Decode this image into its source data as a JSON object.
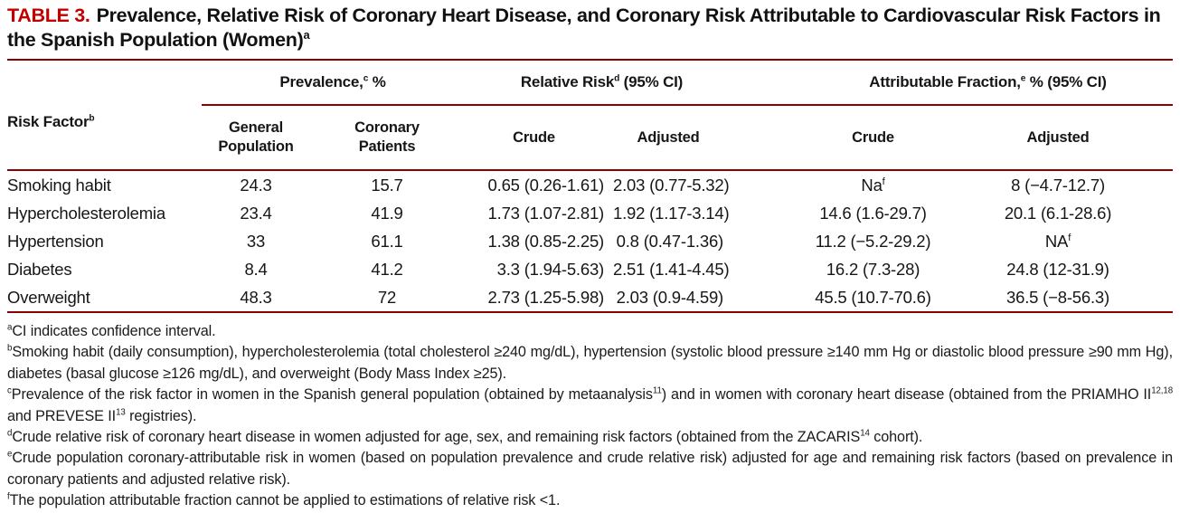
{
  "colors": {
    "title_red": "#c00000",
    "rule_red": "#8b0000"
  },
  "title": {
    "label": "TABLE 3.",
    "rich": [
      {
        "t": "Prevalence, Relative Risk of Coronary Heart Disease, and Coronary Risk Attributable to Cardiovascular Risk Factors in the Spanish Population (Women)"
      },
      {
        "sup": "a"
      }
    ]
  },
  "table": {
    "header": {
      "risk_factor": [
        {
          "t": "Risk Factor"
        },
        {
          "sup": "b"
        }
      ],
      "groups": [
        {
          "label": [
            {
              "t": "Prevalence,"
            },
            {
              "sup": "c"
            },
            {
              "t": " %"
            }
          ]
        },
        {
          "label": [
            {
              "t": "Relative Risk"
            },
            {
              "sup": "d"
            },
            {
              "t": " (95% CI)"
            }
          ]
        },
        {
          "label": [
            {
              "t": "Attributable Fraction,"
            },
            {
              "sup": "e"
            },
            {
              "t": " % (95% CI)"
            }
          ]
        }
      ],
      "subcolumns": [
        "General\nPopulation",
        "Coronary\nPatients",
        "Crude",
        "Adjusted",
        "Crude",
        "Adjusted"
      ]
    },
    "rows": [
      {
        "factor": "Smoking habit",
        "general": "24.3",
        "coronary": "15.7",
        "rr_crude": "0.65 (0.26-1.61)",
        "rr_adjusted": "2.03 (0.77-5.32)",
        "af_crude": [
          {
            "t": "Na"
          },
          {
            "sup": "f"
          }
        ],
        "af_adjusted": "8 (−4.7-12.7)"
      },
      {
        "factor": "Hypercholesterolemia",
        "general": "23.4",
        "coronary": "41.9",
        "rr_crude": "1.73 (1.07-2.81)",
        "rr_adjusted": "1.92 (1.17-3.14)",
        "af_crude": "14.6 (1.6-29.7)",
        "af_adjusted": "20.1 (6.1-28.6)"
      },
      {
        "factor": "Hypertension",
        "general": "33",
        "coronary": "61.1",
        "rr_crude": "1.38 (0.85-2.25)",
        "rr_adjusted": "0.8 (0.47-1.36)",
        "af_crude": "11.2 (−5.2-29.2)",
        "af_adjusted": [
          {
            "t": "NA"
          },
          {
            "sup": "f"
          }
        ]
      },
      {
        "factor": "Diabetes",
        "general": "8.4",
        "coronary": "41.2",
        "rr_crude": "3.3 (1.94-5.63)",
        "rr_adjusted": "2.51 (1.41-4.45)",
        "af_crude": "16.2 (7.3-28)",
        "af_adjusted": "24.8 (12-31.9)"
      },
      {
        "factor": "Overweight",
        "general": "48.3",
        "coronary": "72",
        "rr_crude": "2.73 (1.25-5.98)",
        "rr_adjusted": "2.03 (0.9-4.59)",
        "af_crude": "45.5 (10.7-70.6)",
        "af_adjusted": "36.5 (−8-56.3)"
      }
    ]
  },
  "footnotes": [
    {
      "rich": [
        {
          "sup": "a"
        },
        {
          "t": "CI indicates confidence interval."
        }
      ]
    },
    {
      "rich": [
        {
          "sup": "b"
        },
        {
          "t": "Smoking habit (daily consumption), hypercholesterolemia (total cholesterol ≥240 mg/dL), hypertension (systolic blood pressure ≥140 mm  Hg or diastolic blood pressure ≥90 mm  Hg), diabetes (basal glucose ≥126 mg/dL), and overweight (Body Mass Index ≥25)."
        }
      ]
    },
    {
      "rich": [
        {
          "sup": "c"
        },
        {
          "t": "Prevalence of the risk factor in women in the Spanish general population (obtained by metaanalysis"
        },
        {
          "sup": "11"
        },
        {
          "t": ") and in women with coronary heart disease (obtained from the PRIAMHO II"
        },
        {
          "sup": "12,18"
        },
        {
          "t": " and PREVESE II"
        },
        {
          "sup": "13"
        },
        {
          "t": " registries)."
        }
      ]
    },
    {
      "rich": [
        {
          "sup": "d"
        },
        {
          "t": "Crude relative risk of coronary heart disease in women adjusted for age, sex, and remaining risk factors (obtained from the ZACARIS"
        },
        {
          "sup": "14"
        },
        {
          "t": " cohort)."
        }
      ]
    },
    {
      "rich": [
        {
          "sup": "e"
        },
        {
          "t": "Crude population coronary-attributable risk in women (based on population prevalence and crude relative risk) adjusted for age and remaining risk factors (based on prevalence in coronary patients and adjusted relative risk)."
        }
      ]
    },
    {
      "rich": [
        {
          "sup": "f"
        },
        {
          "t": "The population attributable fraction cannot be applied to estimations of relative risk <1."
        }
      ]
    }
  ]
}
